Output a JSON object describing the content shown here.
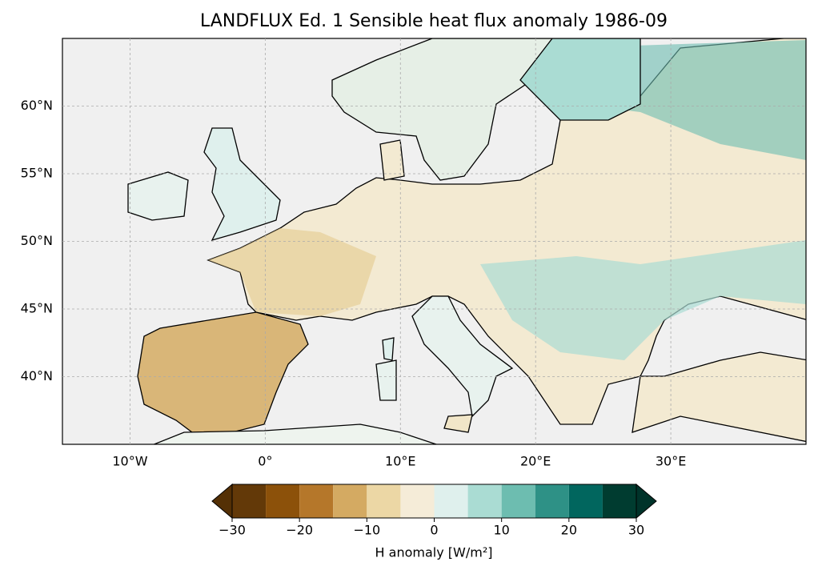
{
  "title": "LANDFLUX Ed. 1 Sensible heat flux anomaly 1986-09",
  "map": {
    "xlim": [
      -15,
      40
    ],
    "ylim": [
      35,
      65
    ],
    "xticks": [
      {
        "value": -10,
        "label": "10°W"
      },
      {
        "value": 0,
        "label": "0°"
      },
      {
        "value": 10,
        "label": "10°E"
      },
      {
        "value": 20,
        "label": "20°E"
      },
      {
        "value": 30,
        "label": "30°E"
      }
    ],
    "yticks": [
      {
        "value": 40,
        "label": "40°N"
      },
      {
        "value": 45,
        "label": "45°N"
      },
      {
        "value": 50,
        "label": "50°N"
      },
      {
        "value": 55,
        "label": "55°N"
      },
      {
        "value": 60,
        "label": "60°N"
      }
    ],
    "grid": true,
    "colorbar": {
      "label": "H anomaly [W/m²]",
      "levels": [
        -30,
        -25,
        -20,
        -15,
        -10,
        -5,
        0,
        5,
        10,
        15,
        20,
        25,
        30
      ],
      "colors": [
        "#633908",
        "#8c510a",
        "#b5772a",
        "#d4aa62",
        "#ecd7a5",
        "#f5ecd8",
        "#dff0ed",
        "#aadcd3",
        "#6dbdb0",
        "#2e9186",
        "#01665e",
        "#003c30"
      ],
      "extend_colors": [
        "#543005",
        "#00332a"
      ],
      "ticks": [
        {
          "value": -30,
          "label": "−30"
        },
        {
          "value": -20,
          "label": "−20"
        },
        {
          "value": -10,
          "label": "−10"
        },
        0,
        10,
        20,
        30
      ]
    }
  }
}
